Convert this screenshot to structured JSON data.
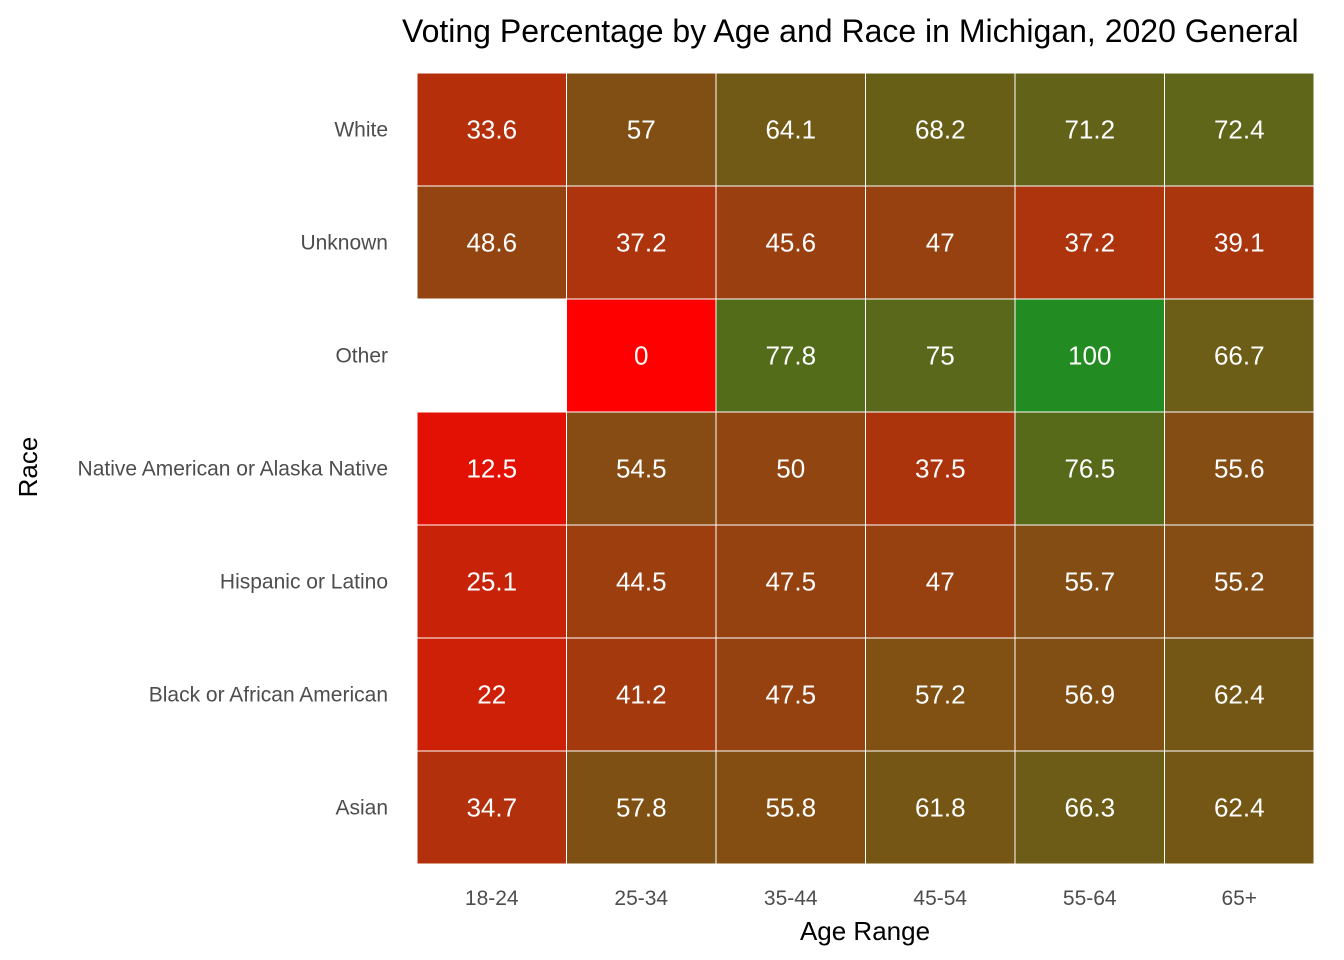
{
  "chart_data": {
    "type": "heatmap",
    "title": "Voting Percentage by Age and Race in Michigan, 2020 General",
    "xlabel": "Age Range",
    "ylabel": "Race",
    "x_categories": [
      "18-24",
      "25-34",
      "35-44",
      "45-54",
      "55-64",
      "65+"
    ],
    "y_categories": [
      "White",
      "Unknown",
      "Other",
      "Native American or Alaska Native",
      "Hispanic or Latino",
      "Black or African American",
      "Asian"
    ],
    "values": [
      [
        33.6,
        57,
        64.1,
        68.2,
        71.2,
        72.4
      ],
      [
        48.6,
        37.2,
        45.6,
        47,
        37.2,
        39.1
      ],
      [
        null,
        0,
        77.8,
        75,
        100,
        66.7
      ],
      [
        12.5,
        54.5,
        50,
        37.5,
        76.5,
        55.6
      ],
      [
        25.1,
        44.5,
        47.5,
        47,
        55.7,
        55.2
      ],
      [
        22,
        41.2,
        47.5,
        57.2,
        56.9,
        62.4
      ],
      [
        34.7,
        57.8,
        55.8,
        61.8,
        66.3,
        62.4
      ]
    ],
    "color_scale": {
      "low": "#ff0000",
      "high": "#228b22",
      "domain": [
        0,
        100
      ]
    },
    "legend": "none",
    "grid": false
  }
}
